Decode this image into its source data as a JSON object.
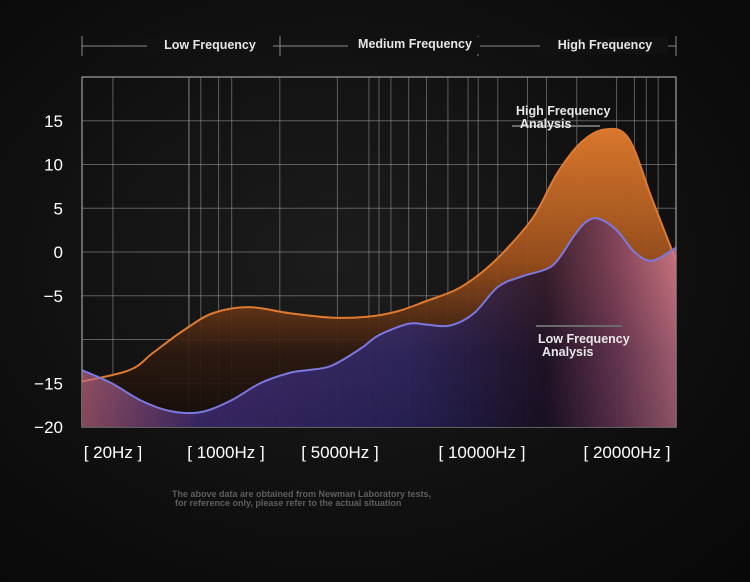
{
  "chart_data": {
    "type": "area",
    "x_ticks": [
      "[ 20Hz ]",
      "[ 1000Hz ]",
      "[ 5000Hz ]",
      "[ 10000Hz ]",
      "[ 20000Hz ]"
    ],
    "ylim": [
      -20,
      20
    ],
    "y_ticks": [
      15,
      10,
      5,
      0,
      -5,
      -15,
      -20
    ],
    "y_tick_labels": [
      "15",
      "10",
      "5",
      "0",
      "−5",
      "−15",
      "−20"
    ],
    "grid": true,
    "bands": [
      "Low Frequency",
      "Medium Frequency",
      "High Frequency"
    ],
    "series": [
      {
        "color": "#e07a30",
        "x": [
          0,
          0.08,
          0.12,
          0.17,
          0.22,
          0.28,
          0.35,
          0.42,
          0.48,
          0.53,
          0.58,
          0.63,
          0.67,
          0.71,
          0.76,
          0.8,
          0.84,
          0.88,
          0.92,
          0.96,
          1.0
        ],
        "values": [
          -14.8,
          -13.5,
          -11.5,
          -9,
          -7,
          -6.3,
          -7,
          -7.5,
          -7.4,
          -6.8,
          -5.6,
          -4.3,
          -2.5,
          0,
          4,
          9,
          12.5,
          14,
          13,
          6,
          -1
        ]
      },
      {
        "color": "#7b78e0",
        "x": [
          0,
          0.05,
          0.1,
          0.15,
          0.2,
          0.25,
          0.3,
          0.35,
          0.38,
          0.42,
          0.47,
          0.5,
          0.55,
          0.58,
          0.62,
          0.66,
          0.7,
          0.74,
          0.78,
          0.8,
          0.83,
          0.85,
          0.87,
          0.9,
          0.93,
          0.96,
          1.0
        ],
        "values": [
          -13.5,
          -15,
          -17,
          -18.2,
          -18.3,
          -17,
          -15,
          -13.8,
          -13.5,
          -13,
          -11,
          -9.5,
          -8.2,
          -8.3,
          -8.4,
          -7,
          -4,
          -2.8,
          -2,
          -1,
          2,
          3.5,
          3.8,
          2.5,
          0,
          -1,
          0.5
        ]
      }
    ],
    "annotations": [
      {
        "lines": [
          "High Frequency",
          "Analysis"
        ]
      },
      {
        "lines": [
          "Low Frequency",
          "Analysis"
        ]
      }
    ],
    "footnote": [
      "The above data are obtained from Newman Laboratory tests,",
      "for reference only, please refer to the actual situation"
    ]
  }
}
